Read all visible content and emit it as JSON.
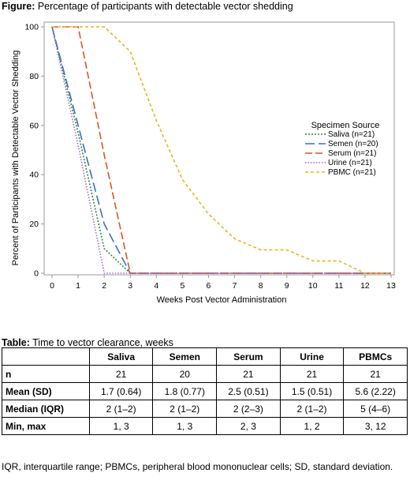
{
  "figure": {
    "caption_prefix": "Figure:",
    "caption_text": "Percentage of participants with detectable vector shedding"
  },
  "chart_data": {
    "type": "line",
    "xlabel": "Weeks Post Vector Administration",
    "ylabel": "Percent of Participants with Detectable Vector Shedding",
    "xlim": [
      0,
      13
    ],
    "ylim": [
      0,
      100
    ],
    "xticks": [
      0,
      1,
      2,
      3,
      4,
      5,
      6,
      7,
      8,
      9,
      10,
      11,
      12,
      13
    ],
    "yticks": [
      0,
      20,
      40,
      60,
      80,
      100
    ],
    "grid": false,
    "legend_title": "Specimen Source",
    "legend_position": "right",
    "series": [
      {
        "name": "Saliva (n=21)",
        "color": "#2e8b2e",
        "dash": "2,2",
        "x": [
          0,
          1,
          2,
          3,
          13
        ],
        "y": [
          100,
          57,
          10,
          0,
          0
        ]
      },
      {
        "name": "Semen (n=20)",
        "color": "#3a6fc4",
        "dash": "12,5",
        "x": [
          0,
          1,
          2,
          3,
          13
        ],
        "y": [
          100,
          60,
          20,
          0,
          0
        ]
      },
      {
        "name": "Serum (n=21)",
        "color": "#e0541f",
        "dash": "9,4",
        "x": [
          0,
          1,
          2,
          3,
          13
        ],
        "y": [
          100,
          100,
          48,
          0,
          0
        ]
      },
      {
        "name": "Urine (n=21)",
        "color": "#a066c8",
        "dash": "1.5,2",
        "x": [
          0,
          1,
          2,
          13
        ],
        "y": [
          100,
          52,
          0,
          0
        ]
      },
      {
        "name": "PBMC (n=21)",
        "color": "#f2b21b",
        "dash": "4,3",
        "x": [
          0,
          1,
          2,
          3,
          4,
          5,
          6,
          7,
          8,
          9,
          10,
          11,
          12,
          13
        ],
        "y": [
          100,
          100,
          100,
          90,
          62,
          38,
          24,
          14,
          9.5,
          9.5,
          5,
          5,
          0,
          0
        ]
      }
    ]
  },
  "table": {
    "caption_prefix": "Table:",
    "caption_text": "Time to vector clearance, weeks",
    "columns": [
      "",
      "Saliva",
      "Semen",
      "Serum",
      "Urine",
      "PBMCs"
    ],
    "rows": [
      [
        "n",
        "21",
        "20",
        "21",
        "21",
        "21"
      ],
      [
        "Mean (SD)",
        "1.7 (0.64)",
        "1.8 (0.77)",
        "2.5 (0.51)",
        "1.5 (0.51)",
        "5.6 (2.22)"
      ],
      [
        "Median (IQR)",
        "2 (1–2)",
        "2 (1–2)",
        "2 (2–3)",
        "2 (1–2)",
        "5 (4–6)"
      ],
      [
        "Min, max",
        "1, 3",
        "1, 3",
        "2, 3",
        "1, 2",
        "3, 12"
      ]
    ]
  },
  "footnote": "IQR, interquartile range; PBMCs, peripheral blood mononuclear cells; SD, standard deviation."
}
